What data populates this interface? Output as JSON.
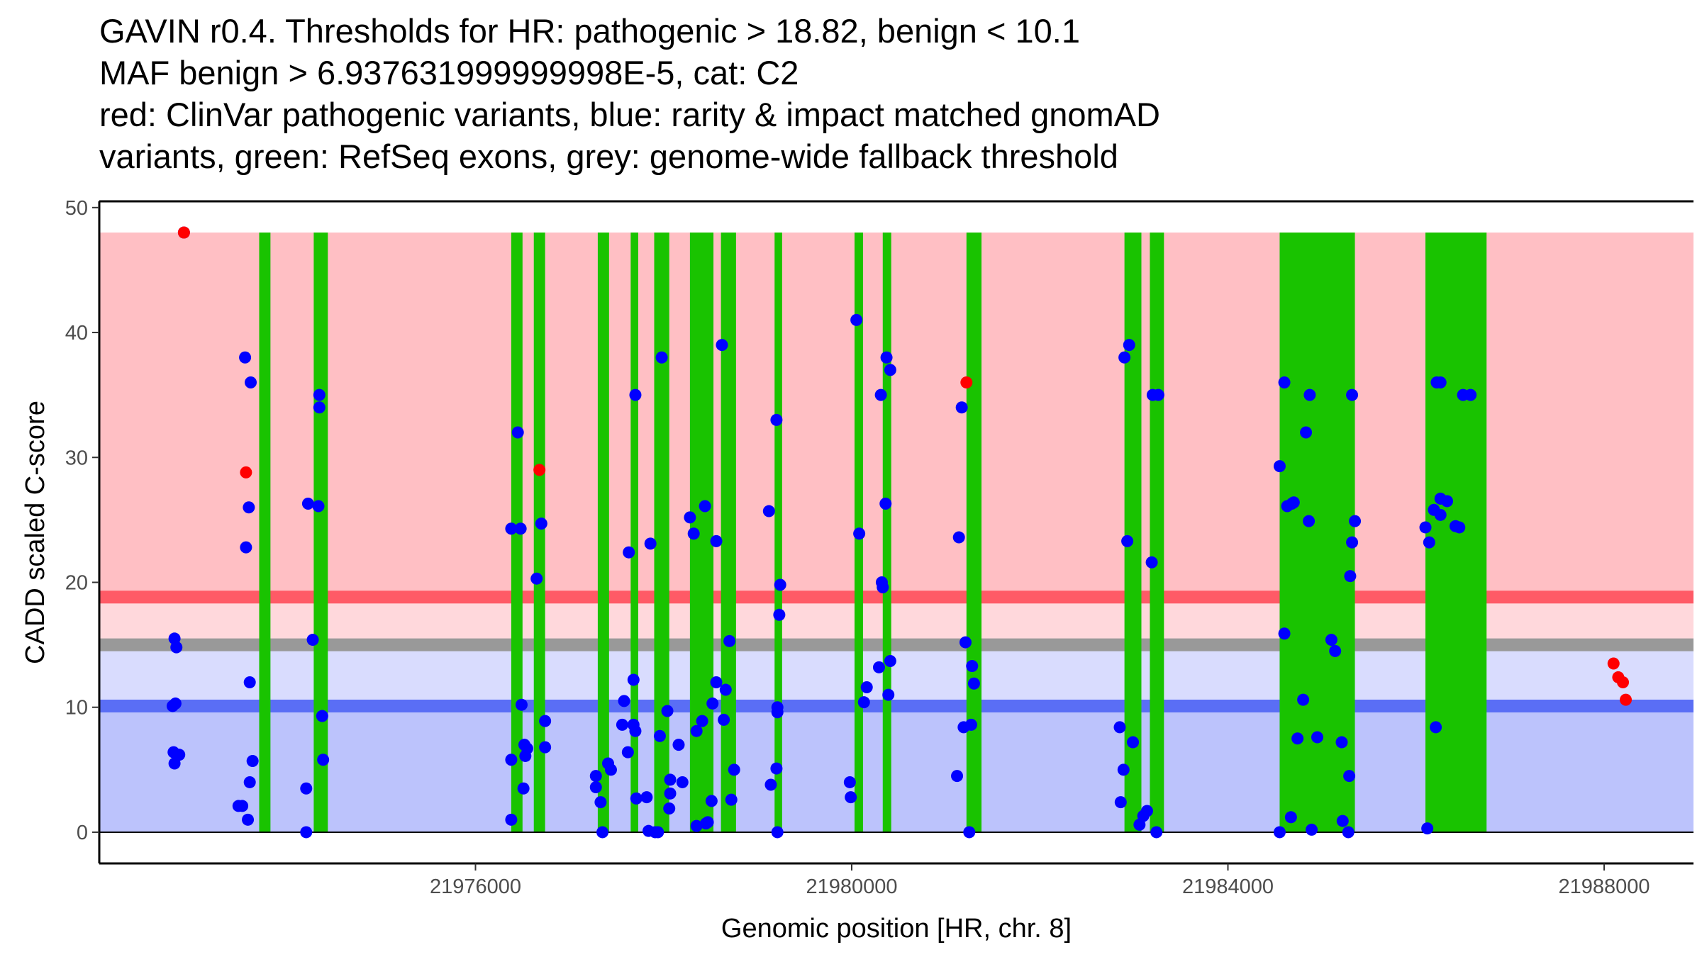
{
  "title": {
    "lines": [
      "GAVIN r0.4. Thresholds for HR: pathogenic > 18.82, benign < 10.1",
      "MAF benign > 6.937631999999998E-5, cat: C2",
      "red: ClinVar pathogenic variants, blue: rarity & impact matched gnomAD",
      "variants, green: RefSeq exons, grey: genome-wide fallback threshold"
    ]
  },
  "chart_data": {
    "type": "scatter",
    "xlabel": "Genomic position [HR, chr. 8]",
    "ylabel": "CADD scaled C-score",
    "xlim": [
      21972000,
      21988950
    ],
    "ylim": [
      -2.5,
      50.5
    ],
    "x_ticks": [
      21976000,
      21980000,
      21984000,
      21988000
    ],
    "x_tick_labels": [
      "21976000",
      "21980000",
      "21984000",
      "21988000"
    ],
    "y_ticks": [
      0,
      10,
      20,
      30,
      40,
      50
    ],
    "y_tick_labels": [
      "0",
      "10",
      "20",
      "30",
      "40",
      "50"
    ],
    "thresholds": {
      "pathogenic": 18.82,
      "benign": 10.1,
      "fallback": 15,
      "score_max": 48
    },
    "colors": {
      "pathogenic_zone": "#ffbfc4",
      "pathogenic_line": "#ff5a66",
      "grey_zone_upper": "#ffd8dc",
      "grey_zone_lower": "#d9dcfe",
      "fallback_line": "#999999",
      "benign_line": "#5a6ef5",
      "benign_zone": "#bcc3fc",
      "exon": "#19c300",
      "clinvar": "#ff0000",
      "gnomad": "#0000ff"
    },
    "exons": [
      [
        21973700,
        21973820
      ],
      [
        21974280,
        21974430
      ],
      [
        21976380,
        21976500
      ],
      [
        21976620,
        21976740
      ],
      [
        21977300,
        21977420
      ],
      [
        21977650,
        21977730
      ],
      [
        21977900,
        21978060
      ],
      [
        21978280,
        21978530
      ],
      [
        21978610,
        21978770
      ],
      [
        21979180,
        21979260
      ],
      [
        21980030,
        21980120
      ],
      [
        21980330,
        21980420
      ],
      [
        21981220,
        21981380
      ],
      [
        21982900,
        21983080
      ],
      [
        21983170,
        21983320
      ],
      [
        21984550,
        21985350
      ],
      [
        21986100,
        21986750
      ]
    ],
    "series": [
      {
        "name": "ClinVar pathogenic variants",
        "color": "#ff0000",
        "points": [
          [
            21972900,
            48
          ],
          [
            21973560,
            28.8
          ],
          [
            21976680,
            29
          ],
          [
            21981220,
            36
          ],
          [
            21988100,
            13.5
          ],
          [
            21988150,
            12.4
          ],
          [
            21988200,
            12
          ],
          [
            21988230,
            10.6
          ]
        ]
      },
      {
        "name": "rarity & impact matched gnomAD variants",
        "color": "#0000ff",
        "points": [
          [
            21972900,
            48
          ],
          [
            21972800,
            15.5
          ],
          [
            21972820,
            14.8
          ],
          [
            21972780,
            10.1
          ],
          [
            21972810,
            10.3
          ],
          [
            21972790,
            6.4
          ],
          [
            21972800,
            5.5
          ],
          [
            21972850,
            6.2
          ],
          [
            21973550,
            38
          ],
          [
            21973610,
            36
          ],
          [
            21973590,
            26
          ],
          [
            21973560,
            22.8
          ],
          [
            21973600,
            12
          ],
          [
            21973630,
            5.7
          ],
          [
            21973600,
            4
          ],
          [
            21973580,
            1
          ],
          [
            21973480,
            2.1
          ],
          [
            21973520,
            2.1
          ],
          [
            21974220,
            26.3
          ],
          [
            21974270,
            15.4
          ],
          [
            21974340,
            35
          ],
          [
            21974340,
            34
          ],
          [
            21974330,
            26.1
          ],
          [
            21974370,
            9.3
          ],
          [
            21974380,
            5.8
          ],
          [
            21974200,
            3.5
          ],
          [
            21974200,
            0
          ],
          [
            21976450,
            32
          ],
          [
            21976380,
            24.3
          ],
          [
            21976480,
            24.3
          ],
          [
            21976490,
            10.2
          ],
          [
            21976380,
            5.8
          ],
          [
            21976520,
            7
          ],
          [
            21976530,
            6.1
          ],
          [
            21976550,
            6.7
          ],
          [
            21976510,
            3.5
          ],
          [
            21976380,
            1
          ],
          [
            21976650,
            20.3
          ],
          [
            21976700,
            24.7
          ],
          [
            21976740,
            8.9
          ],
          [
            21976740,
            6.8
          ],
          [
            21977280,
            4.5
          ],
          [
            21977280,
            3.6
          ],
          [
            21977330,
            2.4
          ],
          [
            21977350,
            0
          ],
          [
            21977410,
            5.5
          ],
          [
            21977440,
            5
          ],
          [
            21977580,
            10.5
          ],
          [
            21977560,
            8.6
          ],
          [
            21977620,
            6.4
          ],
          [
            21977630,
            22.4
          ],
          [
            21977680,
            12.2
          ],
          [
            21977680,
            8.6
          ],
          [
            21977700,
            8.1
          ],
          [
            21977700,
            35
          ],
          [
            21977710,
            2.7
          ],
          [
            21977820,
            2.8
          ],
          [
            21977840,
            0.1
          ],
          [
            21977860,
            23.1
          ],
          [
            21977910,
            0
          ],
          [
            21977940,
            0
          ],
          [
            21977980,
            38
          ],
          [
            21977960,
            7.7
          ],
          [
            21978040,
            9.7
          ],
          [
            21978070,
            4.2
          ],
          [
            21978070,
            3.1
          ],
          [
            21978060,
            1.9
          ],
          [
            21978160,
            7
          ],
          [
            21978200,
            4
          ],
          [
            21978280,
            25.2
          ],
          [
            21978320,
            23.9
          ],
          [
            21978350,
            8.1
          ],
          [
            21978350,
            0.5
          ],
          [
            21978410,
            8.9
          ],
          [
            21978440,
            26.1
          ],
          [
            21978450,
            0.7
          ],
          [
            21978470,
            0.8
          ],
          [
            21978520,
            10.3
          ],
          [
            21978510,
            2.5
          ],
          [
            21978560,
            23.3
          ],
          [
            21978560,
            12
          ],
          [
            21978620,
            39
          ],
          [
            21978660,
            11.4
          ],
          [
            21978640,
            9
          ],
          [
            21978700,
            15.3
          ],
          [
            21978720,
            2.6
          ],
          [
            21978750,
            5
          ],
          [
            21979140,
            3.8
          ],
          [
            21979120,
            25.7
          ],
          [
            21979200,
            33
          ],
          [
            21979200,
            5.1
          ],
          [
            21979210,
            10
          ],
          [
            21979240,
            19.8
          ],
          [
            21979230,
            17.4
          ],
          [
            21979210,
            9.6
          ],
          [
            21979210,
            0
          ],
          [
            21979980,
            4
          ],
          [
            21979990,
            2.8
          ],
          [
            21980050,
            41
          ],
          [
            21980080,
            23.9
          ],
          [
            21980160,
            11.6
          ],
          [
            21980130,
            10.4
          ],
          [
            21980290,
            13.2
          ],
          [
            21980320,
            20
          ],
          [
            21980330,
            19.6
          ],
          [
            21980310,
            35
          ],
          [
            21980370,
            38
          ],
          [
            21980410,
            37
          ],
          [
            21980360,
            26.3
          ],
          [
            21980390,
            11
          ],
          [
            21980410,
            13.7
          ],
          [
            21981140,
            23.6
          ],
          [
            21981170,
            34
          ],
          [
            21981120,
            4.5
          ],
          [
            21981210,
            15.2
          ],
          [
            21981190,
            8.4
          ],
          [
            21981270,
            8.6
          ],
          [
            21981280,
            13.3
          ],
          [
            21981300,
            11.9
          ],
          [
            21981250,
            0
          ],
          [
            21982850,
            8.4
          ],
          [
            21982900,
            38
          ],
          [
            21982950,
            39
          ],
          [
            21982930,
            23.3
          ],
          [
            21982990,
            7.2
          ],
          [
            21982890,
            5
          ],
          [
            21982860,
            2.4
          ],
          [
            21983060,
            0.6
          ],
          [
            21983100,
            1.3
          ],
          [
            21983140,
            1.7
          ],
          [
            21983190,
            21.6
          ],
          [
            21983200,
            35
          ],
          [
            21983260,
            35
          ],
          [
            21983240,
            0
          ],
          [
            21984550,
            29.3
          ],
          [
            21984600,
            36
          ],
          [
            21984630,
            26.1
          ],
          [
            21984680,
            26.3
          ],
          [
            21984700,
            26.4
          ],
          [
            21984600,
            15.9
          ],
          [
            21984870,
            35
          ],
          [
            21984830,
            32
          ],
          [
            21984860,
            24.9
          ],
          [
            21984740,
            7.5
          ],
          [
            21984800,
            10.6
          ],
          [
            21984550,
            0
          ],
          [
            21984670,
            1.2
          ],
          [
            21984890,
            0.2
          ],
          [
            21984950,
            7.6
          ],
          [
            21985100,
            15.4
          ],
          [
            21985140,
            14.5
          ],
          [
            21985210,
            7.2
          ],
          [
            21985220,
            0.9
          ],
          [
            21985280,
            0
          ],
          [
            21985290,
            4.5
          ],
          [
            21985300,
            20.5
          ],
          [
            21985320,
            23.2
          ],
          [
            21985320,
            35
          ],
          [
            21985350,
            24.9
          ],
          [
            21986100,
            24.4
          ],
          [
            21986140,
            23.2
          ],
          [
            21986120,
            0.3
          ],
          [
            21986190,
            25.8
          ],
          [
            21986210,
            8.4
          ],
          [
            21986260,
            25.4
          ],
          [
            21986260,
            26.7
          ],
          [
            21986330,
            26.5
          ],
          [
            21986220,
            36
          ],
          [
            21986260,
            36
          ],
          [
            21986420,
            24.5
          ],
          [
            21986460,
            24.4
          ],
          [
            21986500,
            35
          ],
          [
            21986580,
            35
          ]
        ]
      }
    ]
  }
}
